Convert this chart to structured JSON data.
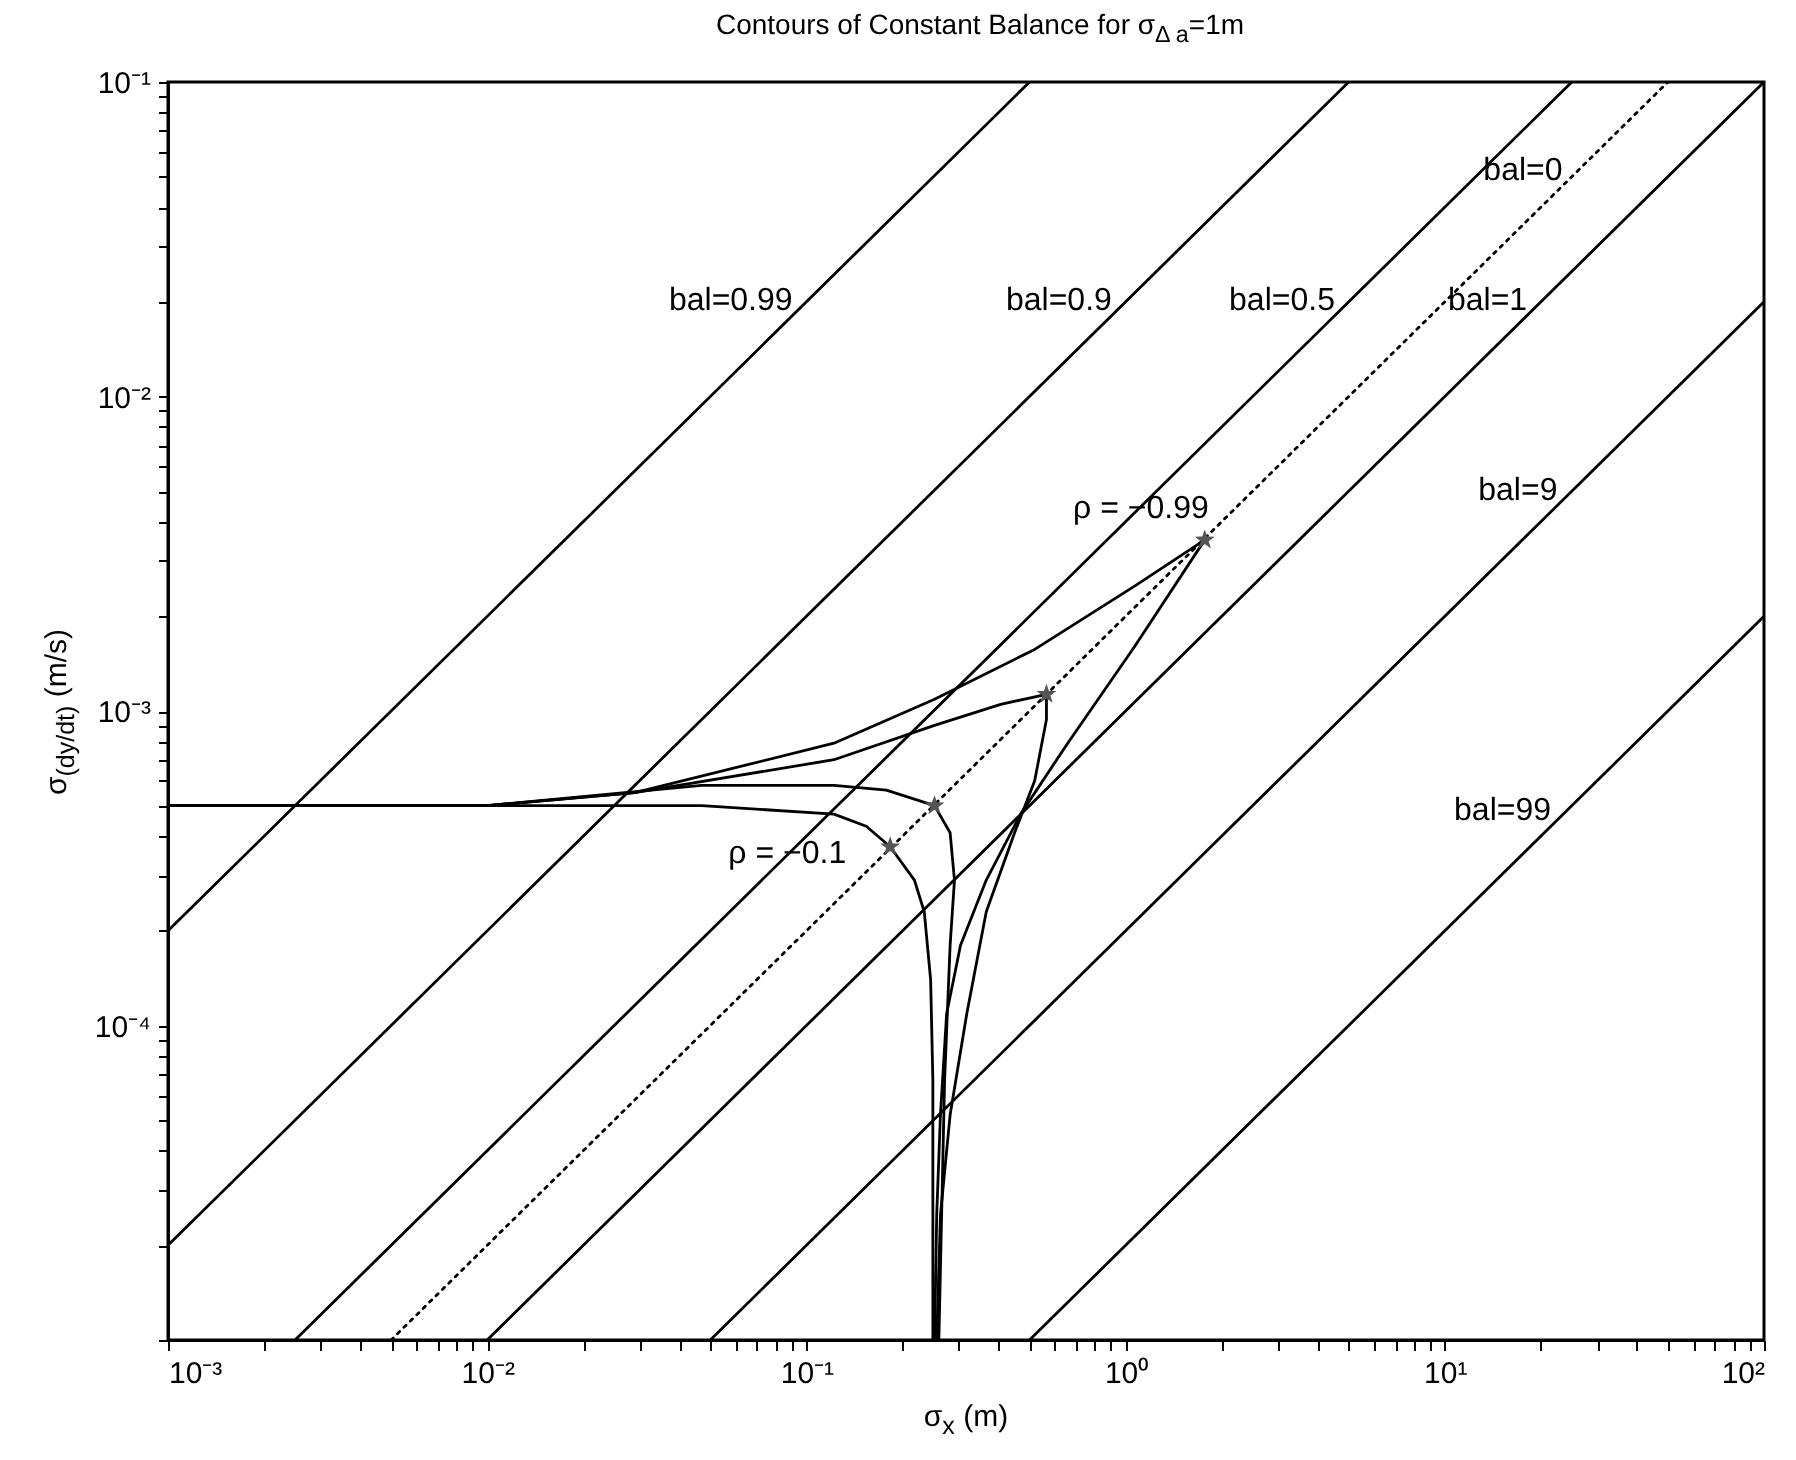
{
  "chart_data": {
    "type": "line",
    "title": "Contours of Constant Balance for σ$_{Δ a}$=1m",
    "xlabel": "σ$_{x}$ (m)",
    "ylabel": "σ$_{(dy/dt)}$ (m/s)",
    "log": "xy",
    "grid": false,
    "xlim": [
      0.001,
      100
    ],
    "ylim": [
      1e-05,
      0.1
    ],
    "xticks": [
      {
        "value": 0.001,
        "label": "10⁻³"
      },
      {
        "value": 0.002,
        "label": null
      },
      {
        "value": 0.003,
        "label": null
      },
      {
        "value": 0.004,
        "label": null
      },
      {
        "value": 0.005,
        "label": null
      },
      {
        "value": 0.006,
        "label": null
      },
      {
        "value": 0.007,
        "label": null
      },
      {
        "value": 0.008,
        "label": null
      },
      {
        "value": 0.009,
        "label": null
      },
      {
        "value": 0.01,
        "label": "10⁻²"
      },
      {
        "value": 0.02,
        "label": null
      },
      {
        "value": 0.03,
        "label": null
      },
      {
        "value": 0.04,
        "label": null
      },
      {
        "value": 0.05,
        "label": null
      },
      {
        "value": 0.06,
        "label": null
      },
      {
        "value": 0.07,
        "label": null
      },
      {
        "value": 0.08,
        "label": null
      },
      {
        "value": 0.09,
        "label": null
      },
      {
        "value": 0.1,
        "label": "10⁻¹"
      },
      {
        "value": 0.2,
        "label": null
      },
      {
        "value": 0.3,
        "label": null
      },
      {
        "value": 0.4,
        "label": null
      },
      {
        "value": 0.5,
        "label": null
      },
      {
        "value": 0.6,
        "label": null
      },
      {
        "value": 0.7,
        "label": null
      },
      {
        "value": 0.8,
        "label": null
      },
      {
        "value": 0.9,
        "label": null
      },
      {
        "value": 1,
        "label": "10⁰"
      },
      {
        "value": 2,
        "label": null
      },
      {
        "value": 3,
        "label": null
      },
      {
        "value": 4,
        "label": null
      },
      {
        "value": 5,
        "label": null
      },
      {
        "value": 6,
        "label": null
      },
      {
        "value": 7,
        "label": null
      },
      {
        "value": 8,
        "label": null
      },
      {
        "value": 9,
        "label": null
      },
      {
        "value": 10,
        "label": "10¹"
      },
      {
        "value": 20,
        "label": null
      },
      {
        "value": 30,
        "label": null
      },
      {
        "value": 40,
        "label": null
      },
      {
        "value": 50,
        "label": null
      },
      {
        "value": 60,
        "label": null
      },
      {
        "value": 70,
        "label": null
      },
      {
        "value": 80,
        "label": null
      },
      {
        "value": 90,
        "label": null
      },
      {
        "value": 100,
        "label": "10²"
      }
    ],
    "yticks": [
      {
        "value": 1e-05,
        "label": null
      },
      {
        "value": 2e-05,
        "label": null
      },
      {
        "value": 3e-05,
        "label": null
      },
      {
        "value": 4e-05,
        "label": null
      },
      {
        "value": 5e-05,
        "label": null
      },
      {
        "value": 6e-05,
        "label": null
      },
      {
        "value": 7e-05,
        "label": null
      },
      {
        "value": 8e-05,
        "label": null
      },
      {
        "value": 9e-05,
        "label": null
      },
      {
        "value": 0.0001,
        "label": "10⁻⁴"
      },
      {
        "value": 0.0002,
        "label": null
      },
      {
        "value": 0.0003,
        "label": null
      },
      {
        "value": 0.0004,
        "label": null
      },
      {
        "value": 0.0005,
        "label": null
      },
      {
        "value": 0.0006,
        "label": null
      },
      {
        "value": 0.0007,
        "label": null
      },
      {
        "value": 0.0008,
        "label": null
      },
      {
        "value": 0.0009,
        "label": null
      },
      {
        "value": 0.001,
        "label": "10⁻³"
      },
      {
        "value": 0.002,
        "label": null
      },
      {
        "value": 0.003,
        "label": null
      },
      {
        "value": 0.004,
        "label": null
      },
      {
        "value": 0.005,
        "label": null
      },
      {
        "value": 0.006,
        "label": null
      },
      {
        "value": 0.007,
        "label": null
      },
      {
        "value": 0.008,
        "label": null
      },
      {
        "value": 0.009,
        "label": null
      },
      {
        "value": 0.01,
        "label": "10⁻²"
      },
      {
        "value": 0.02,
        "label": null
      },
      {
        "value": 0.03,
        "label": null
      },
      {
        "value": 0.04,
        "label": null
      },
      {
        "value": 0.05,
        "label": null
      },
      {
        "value": 0.06,
        "label": null
      },
      {
        "value": 0.07,
        "label": null
      },
      {
        "value": 0.08,
        "label": null
      },
      {
        "value": 0.09,
        "label": null
      },
      {
        "value": 0.1,
        "label": "10⁻¹"
      }
    ],
    "series": [
      {
        "name": "bal=0.99",
        "color": "#000000",
        "x": [
          0.001,
          0.5
        ],
        "values": [
          0.0002,
          0.1
        ]
      },
      {
        "name": "bal=0.9",
        "color": "#000000",
        "x": [
          0.001,
          5
        ],
        "values": [
          2e-05,
          0.1
        ]
      },
      {
        "name": "bal=0.5",
        "color": "#000000",
        "x": [
          0.0025,
          25
        ],
        "values": [
          1e-05,
          0.1
        ]
      },
      {
        "name": "bal=0",
        "color": "#000000",
        "line_style": "dotted",
        "x": [
          0.005,
          50
        ],
        "values": [
          1e-05,
          0.1
        ]
      },
      {
        "name": "bal=1",
        "color": "#000000",
        "x": [
          0.01,
          100
        ],
        "values": [
          1e-05,
          0.1
        ]
      },
      {
        "name": "bal=9",
        "color": "#000000",
        "x": [
          0.05,
          100
        ],
        "values": [
          1e-05,
          0.02
        ]
      },
      {
        "name": "bal=99",
        "color": "#000000",
        "x": [
          0.5,
          100
        ],
        "values": [
          1e-05,
          0.002
        ]
      },
      {
        "color": "#000000",
        "x": [
          0.001,
          0.01,
          0.029,
          0.122,
          0.252,
          0.519,
          1.07,
          1.77,
          1.07,
          0.653,
          0.469,
          0.366,
          0.304,
          0.275,
          0.263,
          0.256,
          0.252
        ],
        "values": [
          0.0005,
          0.0005,
          0.00055,
          0.00079,
          0.00109,
          0.00157,
          0.0025,
          0.0035,
          0.00161,
          0.00078,
          0.00047,
          0.00029,
          0.00018,
          0.000109,
          5.2e-05,
          2.5e-05,
          1e-05
        ]
      },
      {
        "color": "#000000",
        "x": [
          0.001,
          0.01,
          0.029,
          0.122,
          0.252,
          0.406,
          0.565,
          0.565,
          0.519,
          0.449,
          0.366,
          0.318,
          0.282,
          0.263,
          0.256
        ],
        "values": [
          0.0005,
          0.0005,
          0.00055,
          0.0007,
          0.0009,
          0.00105,
          0.00113,
          0.00094,
          0.0006,
          0.00041,
          0.00023,
          0.000109,
          5.2e-05,
          2.5e-05,
          1e-05
        ]
      },
      {
        "color": "#000000",
        "x": [
          0.001,
          0.01,
          0.047,
          0.122,
          0.178,
          0.252,
          0.282,
          0.291,
          0.282,
          0.271,
          0.26
        ],
        "values": [
          0.0005,
          0.0005,
          0.00058,
          0.00058,
          0.00056,
          0.0005,
          0.00041,
          0.00029,
          0.00018,
          6.7e-05,
          1e-05
        ]
      },
      {
        "color": "#000000",
        "x": [
          0.001,
          0.047,
          0.122,
          0.154,
          0.183,
          0.218,
          0.234,
          0.245,
          0.249,
          0.249
        ],
        "values": [
          0.0005,
          0.0005,
          0.00047,
          0.00043,
          0.00037,
          0.00029,
          0.00023,
          0.00014,
          6.7e-05,
          1e-05
        ]
      },
      {
        "type": "scatter",
        "color": "#555555",
        "marker": "star",
        "x": [
          1.77,
          0.565,
          0.252,
          0.183
        ],
        "values": [
          0.0035,
          0.00113,
          0.0005,
          0.00037
        ]
      }
    ],
    "annotations": [
      {
        "text": "ρ = −0.99",
        "x": 1.77,
        "y": 0.0035
      },
      {
        "text": "ρ = −0.1",
        "x": 0.183,
        "y": 0.00037
      }
    ]
  }
}
